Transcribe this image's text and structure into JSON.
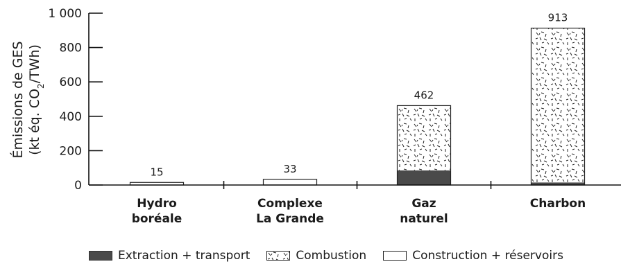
{
  "chart_data": {
    "type": "bar",
    "stacked": true,
    "categories": [
      [
        "Hydro",
        "boréale"
      ],
      [
        "Complexe",
        "La Grande"
      ],
      [
        "Gaz",
        "naturel"
      ],
      [
        "Charbon"
      ]
    ],
    "totals": [
      15,
      33,
      462,
      913
    ],
    "series": [
      {
        "name": "Extraction + transport",
        "values": [
          0,
          0,
          85,
          15
        ],
        "color": "#4a4a4a"
      },
      {
        "name": "Combustion",
        "values": [
          0,
          0,
          377,
          898
        ],
        "color": "#ffffff",
        "pattern": "dashes"
      },
      {
        "name": "Construction + réservoirs",
        "values": [
          15,
          33,
          0,
          0
        ],
        "color": "#ffffff"
      }
    ],
    "ylabel_line1": "Émissions de GES",
    "ylabel_line2_pre": "(kt éq. CO",
    "ylabel_line2_sub": "2",
    "ylabel_line2_post": "/TWh)",
    "yticks": [
      "0",
      "200",
      "400",
      "600",
      "800",
      "1 000"
    ],
    "ylim": [
      0,
      1000
    ],
    "grid": false,
    "legend_position": "bottom"
  }
}
